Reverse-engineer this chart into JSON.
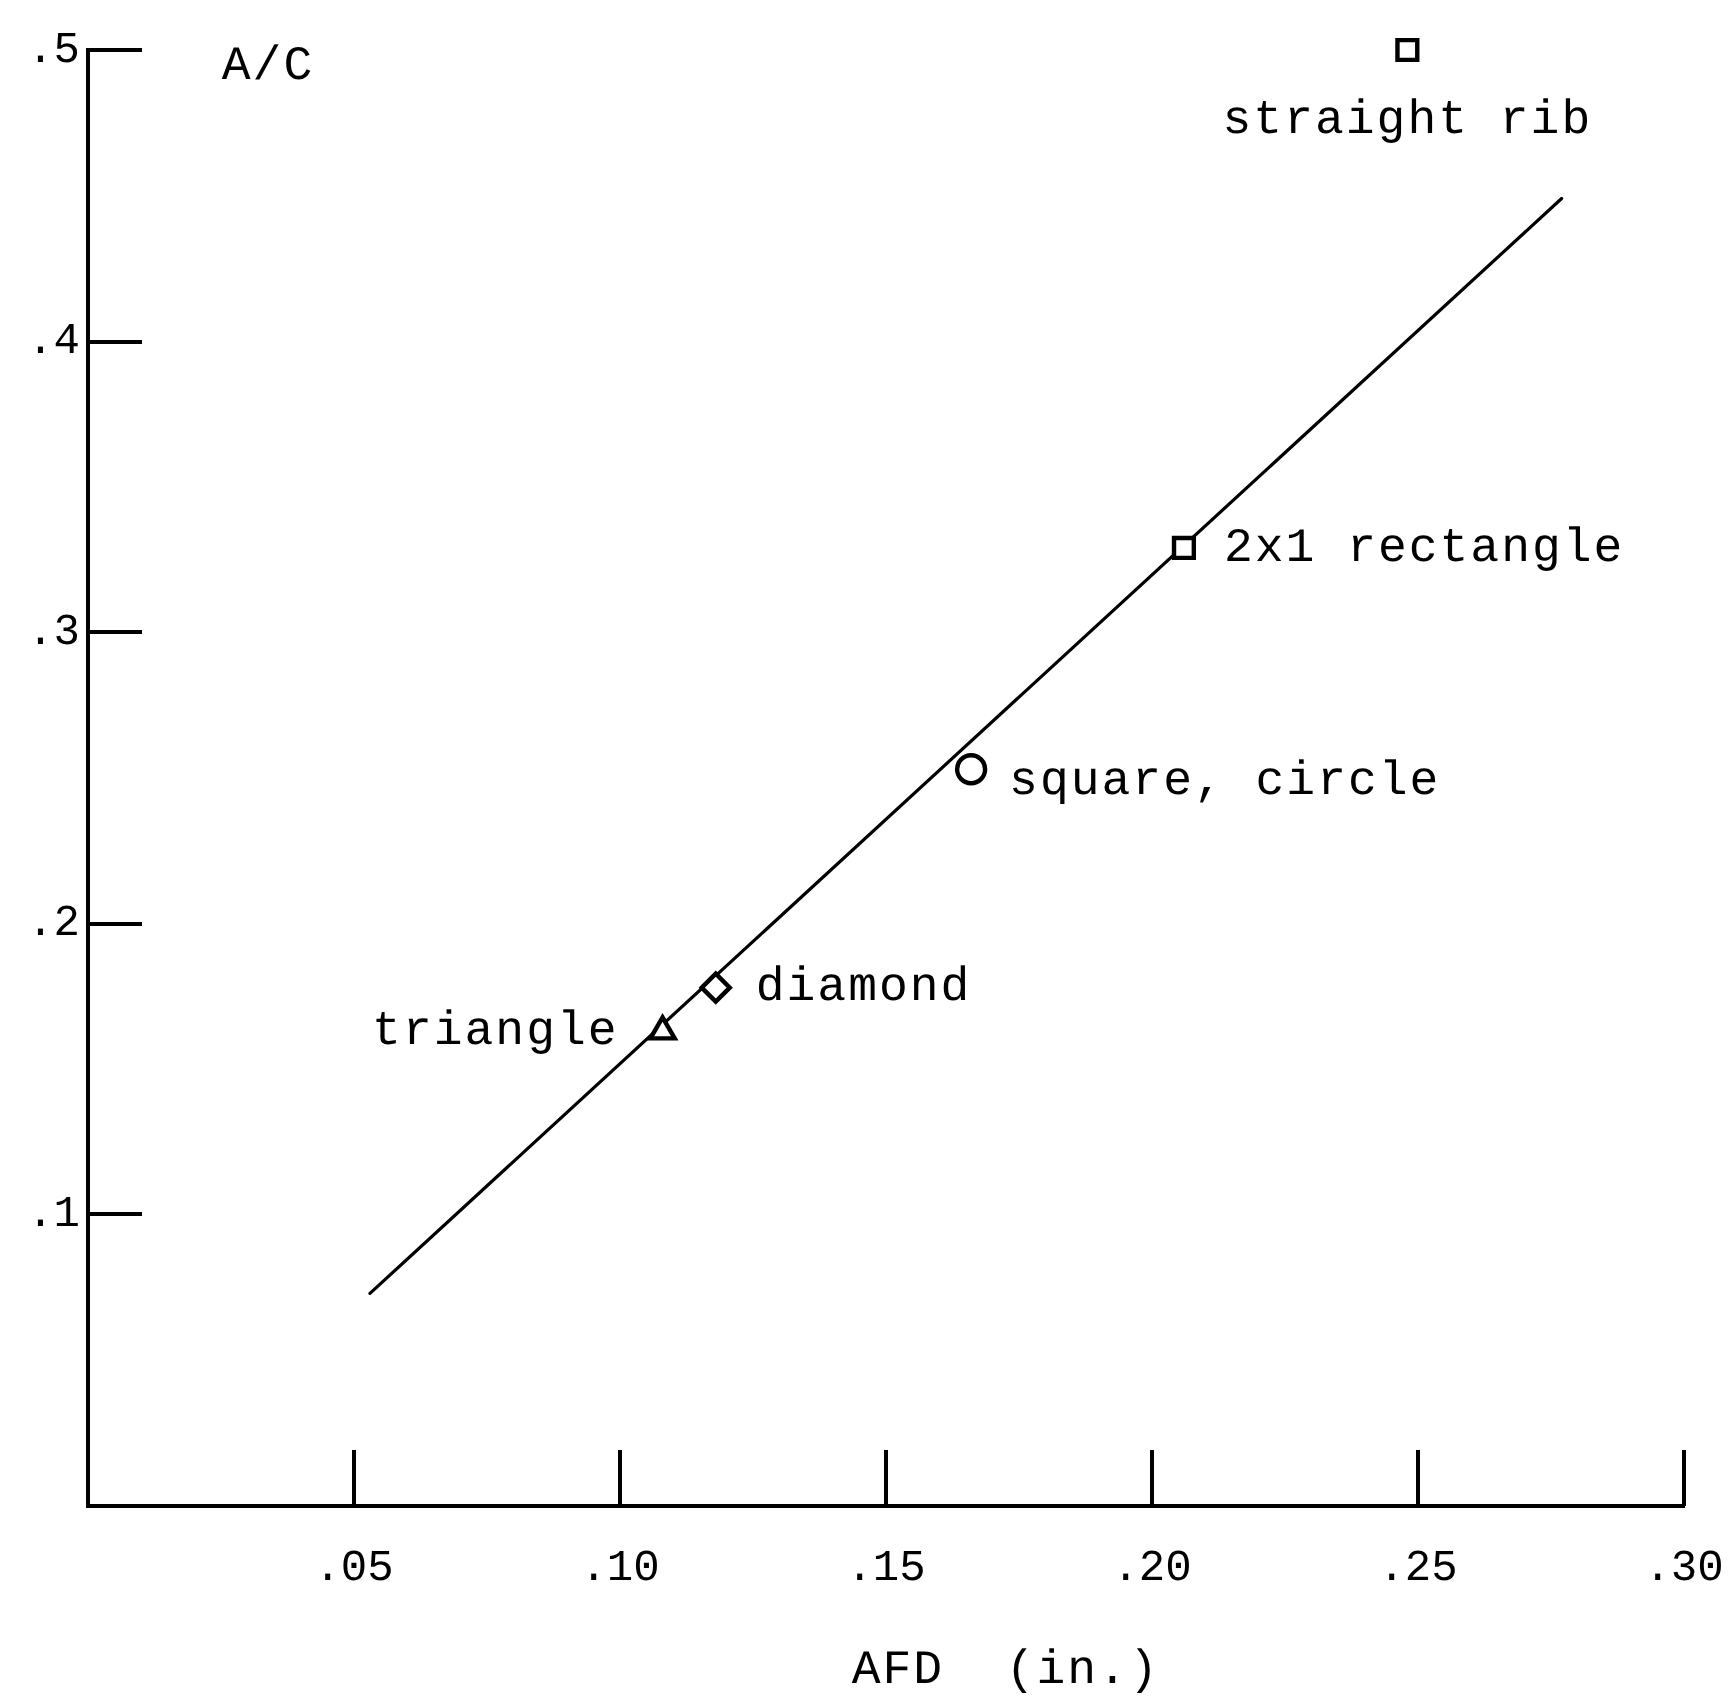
{
  "chart_data": {
    "type": "scatter",
    "xlabel": "AFD  (in.)",
    "ylabel": "A/C",
    "xlim": [
      0,
      0.3
    ],
    "ylim": [
      0,
      0.5
    ],
    "xticks": [
      {
        "value": 0.05,
        "label": ".05"
      },
      {
        "value": 0.1,
        "label": ".10"
      },
      {
        "value": 0.15,
        "label": ".15"
      },
      {
        "value": 0.2,
        "label": ".20"
      },
      {
        "value": 0.25,
        "label": ".25"
      },
      {
        "value": 0.3,
        "label": ".30"
      }
    ],
    "yticks": [
      {
        "value": 0.1,
        "label": ".1"
      },
      {
        "value": 0.2,
        "label": ".2"
      },
      {
        "value": 0.3,
        "label": ".3"
      },
      {
        "value": 0.4,
        "label": ".4"
      },
      {
        "value": 0.5,
        "label": ".5"
      }
    ],
    "series": [
      {
        "name": "straight rib",
        "type": "scatter",
        "marker": "square",
        "color": "#000000",
        "x": [
          0.248
        ],
        "values": [
          0.5
        ]
      },
      {
        "name": "2x1 rectangle",
        "type": "scatter",
        "marker": "square",
        "color": "#000000",
        "x": [
          0.206
        ],
        "values": [
          0.329
        ]
      },
      {
        "name": "square, circle",
        "type": "scatter",
        "marker": "circle",
        "color": "#000000",
        "x": [
          0.166
        ],
        "values": [
          0.253
        ]
      },
      {
        "name": "diamond",
        "type": "scatter",
        "marker": "diamond",
        "color": "#000000",
        "x": [
          0.118
        ],
        "values": [
          0.178
        ]
      },
      {
        "name": "triangle",
        "type": "scatter",
        "marker": "triangle",
        "color": "#000000",
        "x": [
          0.108
        ],
        "values": [
          0.163
        ]
      },
      {
        "type": "line",
        "marker": "none",
        "line_style": "solid",
        "color": "#000000",
        "x": [
          0.053,
          0.277
        ],
        "values": [
          0.073,
          0.449
        ]
      }
    ],
    "legend": false
  }
}
